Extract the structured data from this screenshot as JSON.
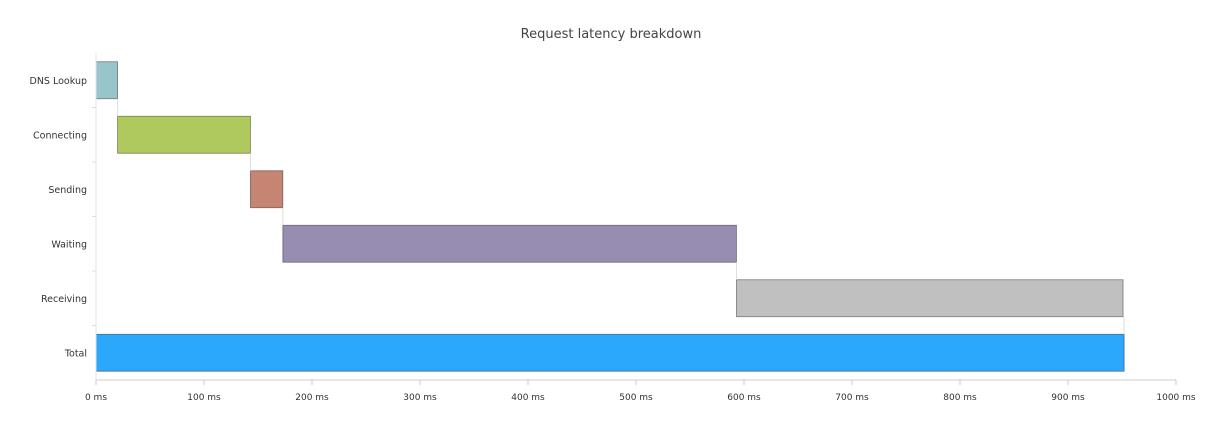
{
  "chart_data": {
    "type": "bar",
    "orientation": "horizontal",
    "title": "Request latency breakdown",
    "xlabel": "",
    "ylabel": "",
    "categories": [
      "DNS Lookup",
      "Connecting",
      "Sending",
      "Waiting",
      "Receiving",
      "Total"
    ],
    "ranges": [
      {
        "category": "DNS Lookup",
        "start": 0,
        "end": 20,
        "color": "#98c5cc"
      },
      {
        "category": "Connecting",
        "start": 20,
        "end": 143,
        "color": "#afc95c"
      },
      {
        "category": "Sending",
        "start": 143,
        "end": 173,
        "color": "#c68472"
      },
      {
        "category": "Waiting",
        "start": 173,
        "end": 593,
        "color": "#978db1"
      },
      {
        "category": "Receiving",
        "start": 593,
        "end": 951,
        "color": "#c0c0c0"
      },
      {
        "category": "Total",
        "start": 0,
        "end": 952,
        "color": "#2ba7fc"
      }
    ],
    "x_ticks": [
      "0 ms",
      "100 ms",
      "200 ms",
      "300 ms",
      "400 ms",
      "500 ms",
      "600 ms",
      "700 ms",
      "800 ms",
      "900 ms",
      "1000 ms"
    ],
    "xlim": [
      0,
      1000
    ],
    "unit": "ms",
    "grid": false,
    "legend": "none"
  }
}
